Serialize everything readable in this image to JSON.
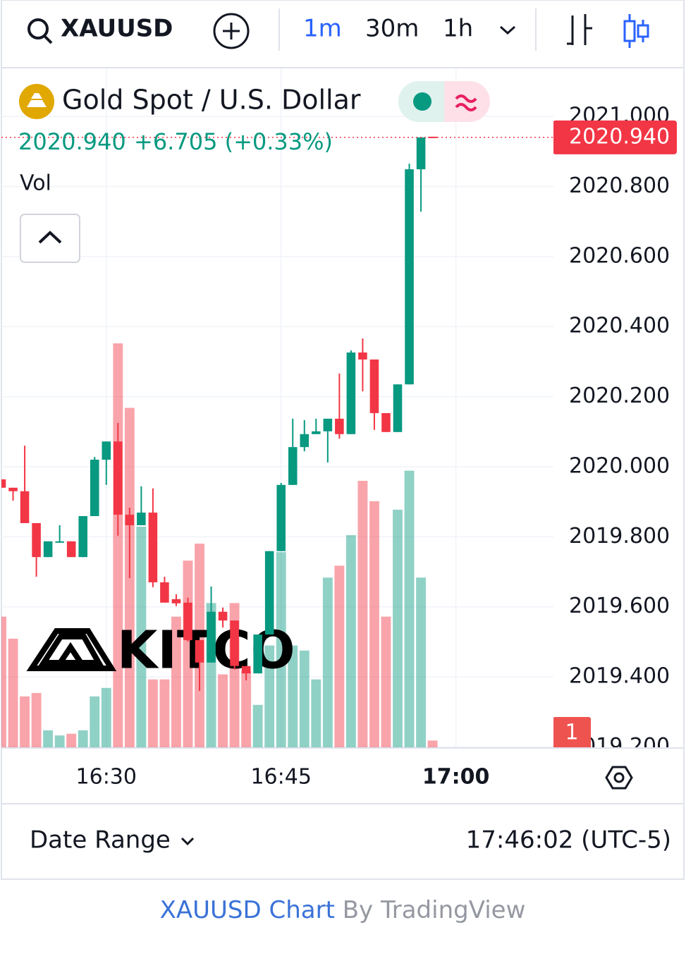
{
  "toolbar": {
    "symbol": "XAUUSD",
    "intervals": [
      "1m",
      "30m",
      "1h"
    ]
  },
  "chart_data": {
    "type": "candlestick",
    "title": "Gold Spot / U.S. Dollar",
    "last": {
      "value": 2020.94,
      "label": "2020.940"
    },
    "change": "+6.705 (+0.33%)",
    "volume_label": "Vol",
    "watermark": "KITCO",
    "badge": "1",
    "up_color": "#089981",
    "down_color": "#f23645",
    "open": [
      2019.964,
      2019.94,
      2019.93,
      2019.839,
      2019.742,
      2019.783,
      2019.787,
      2019.742,
      2019.859,
      2020.02,
      2020.072,
      2019.863,
      2019.833,
      2019.869,
      2019.67,
      2019.622,
      2019.612,
      2019.505,
      2019.441,
      2019.586,
      2019.561,
      2019.431,
      2019.41,
      2019.521,
      2019.759,
      2019.948,
      2020.056,
      2020.093,
      2020.101,
      2020.137,
      2020.093,
      2020.326,
      2020.306,
      2020.153,
      2020.099,
      2020.235,
      2020.849,
      2020.942
    ],
    "high": [
      2019.964,
      2019.94,
      2020.06,
      2019.839,
      2019.787,
      2019.833,
      2019.787,
      2019.859,
      2020.028,
      2020.072,
      2020.125,
      2019.883,
      2019.944,
      2019.938,
      2019.686,
      2019.636,
      2019.626,
      2019.505,
      2019.658,
      2019.598,
      2019.561,
      2019.431,
      2019.521,
      2019.759,
      2019.954,
      2020.137,
      2020.133,
      2020.137,
      2020.137,
      2020.266,
      2020.332,
      2020.366,
      2020.306,
      2020.153,
      2020.235,
      2020.865,
      2020.94,
      2020.942
    ],
    "low": [
      2019.94,
      2019.903,
      2019.839,
      2019.686,
      2019.742,
      2019.783,
      2019.742,
      2019.742,
      2019.859,
      2019.948,
      2019.803,
      2019.682,
      2019.833,
      2019.656,
      2019.612,
      2019.602,
      2019.501,
      2019.36,
      2019.441,
      2019.541,
      2019.421,
      2019.39,
      2019.41,
      2019.521,
      2019.759,
      2019.948,
      2020.044,
      2020.093,
      2020.012,
      2020.08,
      2020.093,
      2020.215,
      2020.105,
      2020.099,
      2020.099,
      2020.235,
      2020.728,
      2020.94
    ],
    "close": [
      2019.94,
      2019.93,
      2019.839,
      2019.742,
      2019.787,
      2019.787,
      2019.742,
      2019.859,
      2020.02,
      2020.072,
      2019.863,
      2019.833,
      2019.869,
      2019.67,
      2019.612,
      2019.61,
      2019.505,
      2019.441,
      2019.586,
      2019.561,
      2019.431,
      2019.41,
      2019.521,
      2019.759,
      2019.948,
      2020.056,
      2020.093,
      2020.101,
      2020.137,
      2020.093,
      2020.326,
      2020.306,
      2020.153,
      2020.099,
      2020.235,
      2020.849,
      2020.94,
      2020.94
    ],
    "volume": [
      77,
      64,
      30,
      32,
      10,
      7,
      8,
      10,
      30,
      35,
      238,
      200,
      130,
      40,
      40,
      77,
      110,
      120,
      85,
      43,
      85,
      45,
      25,
      60,
      115,
      60,
      57,
      40,
      100,
      107,
      125,
      157,
      145,
      77,
      140,
      163,
      100,
      4
    ],
    "vol_ylim": [
      0,
      400
    ],
    "xlim": [
      0,
      47.37
    ],
    "xticks": [
      {
        "value": 9,
        "label": "16:30"
      },
      {
        "value": 24,
        "label": "16:45"
      },
      {
        "value": 39,
        "label": "17:00"
      }
    ],
    "ylim": [
      2019.199,
      2021.137
    ],
    "yticks": [
      {
        "value": 2019.2,
        "label": "2019.200"
      },
      {
        "value": 2019.4,
        "label": "2019.400"
      },
      {
        "value": 2019.6,
        "label": "2019.600"
      },
      {
        "value": 2019.8,
        "label": "2019.800"
      },
      {
        "value": 2020,
        "label": "2020.000"
      },
      {
        "value": 2020.2,
        "label": "2020.200"
      },
      {
        "value": 2020.4,
        "label": "2020.400"
      },
      {
        "value": 2020.6,
        "label": "2020.600"
      },
      {
        "value": 2020.8,
        "label": "2020.800"
      },
      {
        "value": 2021,
        "label": "2021.000"
      }
    ],
    "grid": true
  },
  "footer": {
    "date_range": "Date Range",
    "clock": "17:46:02 (UTC-5)",
    "link": "XAUUSD Chart",
    "by": "By TradingView"
  }
}
